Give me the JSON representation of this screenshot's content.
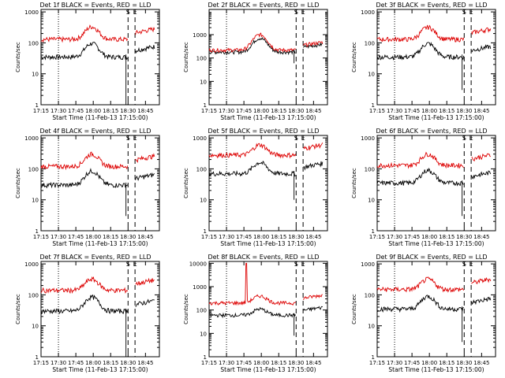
{
  "chart_data": [
    {
      "type": "line",
      "title": "Det 1f BLACK = Events, RED = LLD",
      "xlabel": "Start Time (11-Feb-13 17:15:00)",
      "ylabel": "Counts/sec",
      "x_ticks": [
        "17:15",
        "17:30",
        "17:45",
        "18:00",
        "18:15",
        "18:30",
        "18:45"
      ],
      "y_ticks": [
        "1",
        "10",
        "100",
        "1000"
      ],
      "ylim": [
        1,
        1200
      ],
      "yscale": "log",
      "markers": [
        "S",
        "E"
      ],
      "series": [
        {
          "color": "#000000",
          "base": 35,
          "peak": 95,
          "drop": 0.8
        },
        {
          "color": "#dd0000",
          "base": 130,
          "peak": 330,
          "drop": 0
        }
      ]
    },
    {
      "type": "line",
      "title": "Det 2f BLACK = Events, RED = LLD",
      "xlabel": "Start Time (11-Feb-13 17:15:00)",
      "ylabel": "Counts/sec",
      "x_ticks": [
        "17:15",
        "17:30",
        "17:45",
        "18:00",
        "18:15",
        "18:30",
        "18:45"
      ],
      "y_ticks": [
        "1",
        "10",
        "100",
        "1000"
      ],
      "ylim": [
        1,
        12000
      ],
      "yscale": "log",
      "markers": [
        "S",
        "E"
      ],
      "series": [
        {
          "color": "#000000",
          "base": 180,
          "peak": 700,
          "drop": 60
        },
        {
          "color": "#dd0000",
          "base": 220,
          "peak": 1000,
          "drop": 0
        }
      ]
    },
    {
      "type": "line",
      "title": "Det 3f BLACK = Events, RED = LLD",
      "xlabel": "Start Time (11-Feb-13 17:15:00)",
      "ylabel": "Counts/sec",
      "x_ticks": [
        "17:15",
        "17:30",
        "17:45",
        "18:00",
        "18:15",
        "18:30",
        "18:45"
      ],
      "y_ticks": [
        "1",
        "10",
        "100",
        "1000"
      ],
      "ylim": [
        1,
        1200
      ],
      "yscale": "log",
      "markers": [
        "S",
        "E"
      ],
      "series": [
        {
          "color": "#000000",
          "base": 35,
          "peak": 95,
          "drop": 3
        },
        {
          "color": "#dd0000",
          "base": 130,
          "peak": 320,
          "drop": 0
        }
      ]
    },
    {
      "type": "line",
      "title": "Det 4f BLACK = Events, RED = LLD",
      "xlabel": "Start Time (11-Feb-13 17:15:00)",
      "ylabel": "Counts/sec",
      "x_ticks": [
        "17:15",
        "17:30",
        "17:45",
        "18:00",
        "18:15",
        "18:30",
        "18:45"
      ],
      "y_ticks": [
        "1",
        "10",
        "100",
        "1000"
      ],
      "ylim": [
        1,
        1200
      ],
      "yscale": "log",
      "markers": [
        "S",
        "E"
      ],
      "series": [
        {
          "color": "#000000",
          "base": 30,
          "peak": 85,
          "drop": 3
        },
        {
          "color": "#dd0000",
          "base": 120,
          "peak": 300,
          "drop": 0
        }
      ]
    },
    {
      "type": "line",
      "title": "Det 5f BLACK = Events, RED = LLD",
      "xlabel": "Start Time (11-Feb-13 17:15:00)",
      "ylabel": "Counts/sec",
      "x_ticks": [
        "17:15",
        "17:30",
        "17:45",
        "18:00",
        "18:15",
        "18:30",
        "18:45"
      ],
      "y_ticks": [
        "1",
        "10",
        "100",
        "1000"
      ],
      "ylim": [
        1,
        1200
      ],
      "yscale": "log",
      "markers": [
        "S",
        "E"
      ],
      "series": [
        {
          "color": "#000000",
          "base": 70,
          "peak": 160,
          "drop": 10
        },
        {
          "color": "#dd0000",
          "base": 280,
          "peak": 600,
          "drop": 0
        }
      ]
    },
    {
      "type": "line",
      "title": "Det 6f BLACK = Events, RED = LLD",
      "xlabel": "Start Time (11-Feb-13 17:15:00)",
      "ylabel": "Counts/sec",
      "x_ticks": [
        "17:15",
        "17:30",
        "17:45",
        "18:00",
        "18:15",
        "18:30",
        "18:45"
      ],
      "y_ticks": [
        "1",
        "10",
        "100",
        "1000"
      ],
      "ylim": [
        1,
        1200
      ],
      "yscale": "log",
      "markers": [
        "S",
        "E"
      ],
      "series": [
        {
          "color": "#000000",
          "base": 35,
          "peak": 90,
          "drop": 3
        },
        {
          "color": "#dd0000",
          "base": 130,
          "peak": 300,
          "drop": 0
        }
      ]
    },
    {
      "type": "line",
      "title": "Det 7f BLACK = Events, RED = LLD",
      "xlabel": "Start Time (11-Feb-13 17:15:00)",
      "ylabel": "Counts/sec",
      "x_ticks": [
        "17:15",
        "17:30",
        "17:45",
        "18:00",
        "18:15",
        "18:30",
        "18:45"
      ],
      "y_ticks": [
        "1",
        "10",
        "100",
        "1000"
      ],
      "ylim": [
        1,
        1200
      ],
      "yscale": "log",
      "markers": [
        "S",
        "E"
      ],
      "series": [
        {
          "color": "#000000",
          "base": 30,
          "peak": 85,
          "drop": 1
        },
        {
          "color": "#dd0000",
          "base": 140,
          "peak": 320,
          "drop": 0
        }
      ]
    },
    {
      "type": "line",
      "title": "Det 8f BLACK = Events, RED = LLD",
      "xlabel": "Start Time (11-Feb-13 17:15:00)",
      "ylabel": "Counts/sec",
      "x_ticks": [
        "17:15",
        "17:30",
        "17:45",
        "18:00",
        "18:15",
        "18:30",
        "18:45"
      ],
      "y_ticks": [
        "1",
        "10",
        "100",
        "1000",
        "10000"
      ],
      "ylim": [
        1,
        12000
      ],
      "yscale": "log",
      "markers": [
        "S",
        "E"
      ],
      "series": [
        {
          "color": "#000000",
          "base": 60,
          "peak": 110,
          "drop": 8
        },
        {
          "color": "#dd0000",
          "base": 200,
          "peak": 400,
          "drop": 0,
          "spike": 10000
        }
      ]
    },
    {
      "type": "line",
      "title": "Det 9f BLACK = Events, RED = LLD",
      "xlabel": "Start Time (11-Feb-13 17:15:00)",
      "ylabel": "Counts/sec",
      "x_ticks": [
        "17:15",
        "17:30",
        "17:45",
        "18:00",
        "18:15",
        "18:30",
        "18:45"
      ],
      "y_ticks": [
        "1",
        "10",
        "100",
        "1000"
      ],
      "ylim": [
        1,
        1200
      ],
      "yscale": "log",
      "markers": [
        "S",
        "E"
      ],
      "series": [
        {
          "color": "#000000",
          "base": 35,
          "peak": 90,
          "drop": 3
        },
        {
          "color": "#dd0000",
          "base": 150,
          "peak": 320,
          "drop": 0
        }
      ]
    }
  ]
}
